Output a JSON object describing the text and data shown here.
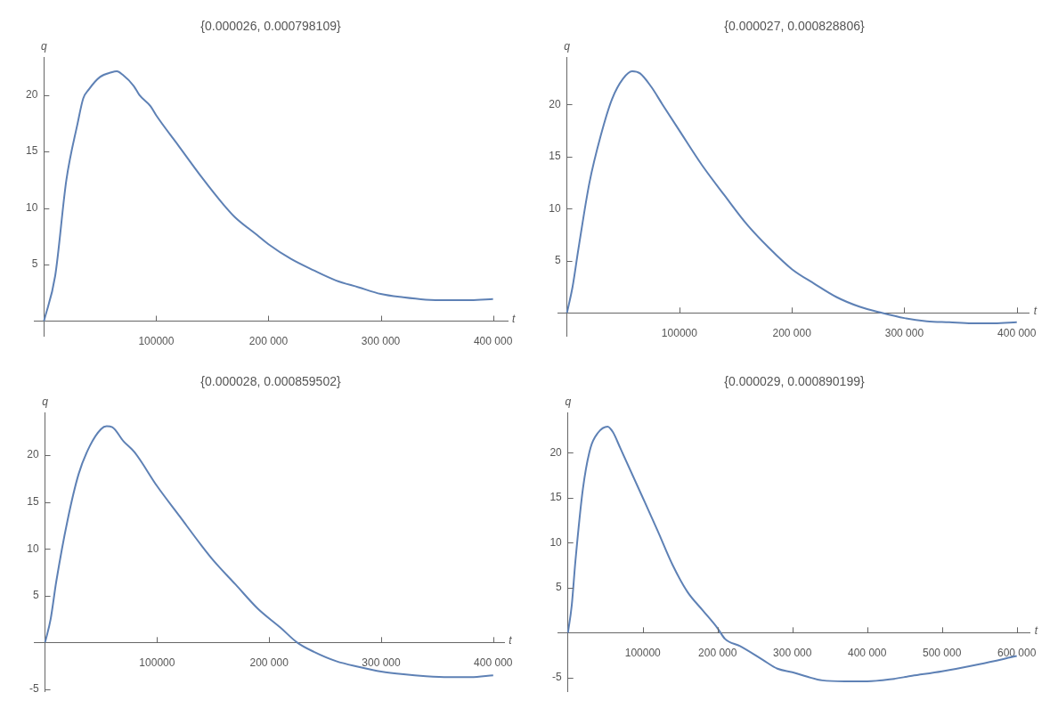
{
  "chart_data": [
    {
      "type": "line",
      "title": "{0.000026, 0.000798109}",
      "xlabel": "t",
      "ylabel": "q",
      "color": "#5e81b5",
      "grid": false,
      "legend": false,
      "marker": "none",
      "xlim": [
        -9000,
        413000
      ],
      "ylim": [
        -1.3,
        23.3
      ],
      "xticks": [
        {
          "value": 100000,
          "label": "100000"
        },
        {
          "value": 200000,
          "label": "200 000"
        },
        {
          "value": 300000,
          "label": "300 000"
        },
        {
          "value": 400000,
          "label": "400 000"
        }
      ],
      "yticks": [
        5,
        10,
        15,
        20
      ],
      "x": [
        0,
        10000,
        20000,
        30000,
        35000,
        40000,
        50000,
        60000,
        65000,
        70000,
        80000,
        85000,
        95000,
        100000,
        120000,
        140000,
        160000,
        170000,
        190000,
        200000,
        220000,
        240000,
        260000,
        280000,
        300000,
        320000,
        340000,
        360000,
        380000,
        400000
      ],
      "values": [
        0,
        4,
        12.5,
        17.5,
        19.7,
        20.5,
        21.6,
        22,
        22.1,
        21.8,
        20.8,
        20,
        19,
        18.2,
        15.5,
        12.8,
        10.3,
        9.2,
        7.6,
        6.8,
        5.5,
        4.5,
        3.6,
        3,
        2.4,
        2.1,
        1.9,
        1.85,
        1.85,
        1.95
      ]
    },
    {
      "type": "line",
      "title": "{0.000027, 0.000828806}",
      "xlabel": "t",
      "ylabel": "q",
      "color": "#5e81b5",
      "grid": false,
      "legend": false,
      "marker": "none",
      "xlim": [
        -8400,
        411000
      ],
      "ylim": [
        -2.2,
        24.5
      ],
      "xticks": [
        {
          "value": 100000,
          "label": "100000"
        },
        {
          "value": 200000,
          "label": "200 000"
        },
        {
          "value": 300000,
          "label": "300 000"
        },
        {
          "value": 400000,
          "label": "400 000"
        }
      ],
      "yticks": [
        5,
        10,
        15,
        20
      ],
      "x": [
        0,
        5000,
        10000,
        20000,
        30000,
        40000,
        50000,
        58000,
        65000,
        75000,
        85000,
        100000,
        120000,
        140000,
        160000,
        180000,
        200000,
        220000,
        240000,
        260000,
        280000,
        300000,
        320000,
        340000,
        360000,
        380000,
        400000
      ],
      "values": [
        0,
        2.5,
        6,
        12.5,
        17,
        20.5,
        22.5,
        23.2,
        23,
        21.7,
        20,
        17.5,
        14.2,
        11.3,
        8.5,
        6.2,
        4.2,
        2.8,
        1.5,
        0.6,
        0,
        -0.5,
        -0.8,
        -0.9,
        -1,
        -1,
        -0.9
      ]
    },
    {
      "type": "line",
      "title": "{0.000028, 0.000859502}",
      "xlabel": "t",
      "ylabel": "q",
      "color": "#5e81b5",
      "grid": false,
      "legend": false,
      "marker": "none",
      "xlim": [
        -10000,
        410000
      ],
      "ylim": [
        -5.2,
        24.5
      ],
      "xticks": [
        {
          "value": 100000,
          "label": "100000"
        },
        {
          "value": 200000,
          "label": "200 000"
        },
        {
          "value": 300000,
          "label": "300 000"
        },
        {
          "value": 400000,
          "label": "400 000"
        }
      ],
      "yticks": [
        -5,
        5,
        10,
        15,
        20
      ],
      "x": [
        0,
        5000,
        10000,
        20000,
        30000,
        40000,
        50000,
        55000,
        60000,
        70000,
        80000,
        100000,
        120000,
        140000,
        150000,
        170000,
        190000,
        210000,
        225000,
        240000,
        260000,
        280000,
        300000,
        320000,
        340000,
        360000,
        380000,
        400000
      ],
      "values": [
        0,
        2.5,
        6.5,
        13,
        18,
        21,
        22.8,
        23.1,
        23,
        21.5,
        20.3,
        16.7,
        13.5,
        10.3,
        8.8,
        6.2,
        3.6,
        1.6,
        0,
        -1,
        -2,
        -2.6,
        -3.1,
        -3.4,
        -3.6,
        -3.7,
        -3.7,
        -3.5
      ]
    },
    {
      "type": "line",
      "title": "{0.000029, 0.000890199}",
      "xlabel": "t",
      "ylabel": "q",
      "color": "#5e81b5",
      "grid": false,
      "legend": false,
      "marker": "none",
      "xlim": [
        -14000,
        618000
      ],
      "ylim": [
        -6.5,
        24.4
      ],
      "xticks": [
        {
          "value": 100000,
          "label": "100000"
        },
        {
          "value": 200000,
          "label": "200 000"
        },
        {
          "value": 300000,
          "label": "300 000"
        },
        {
          "value": 400000,
          "label": "400 000"
        },
        {
          "value": 500000,
          "label": "500 000"
        },
        {
          "value": 600000,
          "label": "600 000"
        }
      ],
      "yticks": [
        -5,
        5,
        10,
        15,
        20
      ],
      "x": [
        0,
        5000,
        10000,
        20000,
        30000,
        40000,
        53000,
        60000,
        70000,
        100000,
        120000,
        140000,
        160000,
        180000,
        200000,
        210000,
        230000,
        260000,
        280000,
        300000,
        320000,
        340000,
        370000,
        400000,
        430000,
        460000,
        500000,
        550000,
        600000
      ],
      "values": [
        0,
        3,
        8,
        16,
        20.5,
        22.2,
        22.9,
        22.3,
        20.5,
        15,
        11.3,
        7.5,
        4.5,
        2.5,
        0.5,
        -0.7,
        -1.5,
        -3,
        -4,
        -4.4,
        -4.9,
        -5.3,
        -5.4,
        -5.4,
        -5.2,
        -4.8,
        -4.3,
        -3.5,
        -2.6
      ]
    }
  ]
}
